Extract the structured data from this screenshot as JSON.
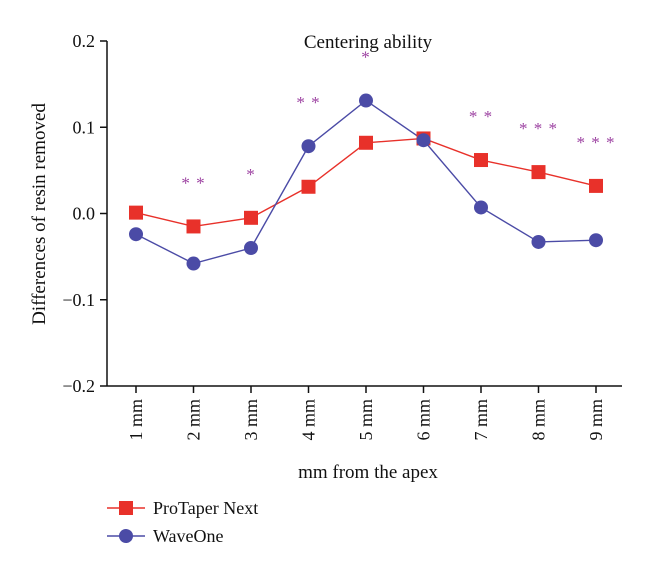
{
  "chart_data": {
    "type": "line",
    "title": "Centering ability",
    "xlabel": "mm from the apex",
    "ylabel": "Differences of resin removed",
    "categories": [
      "1 mm",
      "2 mm",
      "3 mm",
      "4 mm",
      "5 mm",
      "6 mm",
      "7 mm",
      "8 mm",
      "9 mm"
    ],
    "ylim": [
      -0.2,
      0.2
    ],
    "yticks": [
      "0.2",
      "0.1",
      "0.0",
      "−0.1",
      "−0.2"
    ],
    "ytick_values": [
      0.2,
      0.1,
      0.0,
      -0.1,
      -0.2
    ],
    "grid": false,
    "legend_position": "bottom-left",
    "series": [
      {
        "name": "ProTaper Next",
        "color": "#e8312a",
        "marker": "square",
        "values": [
          0.001,
          -0.015,
          -0.005,
          0.031,
          0.082,
          0.087,
          0.062,
          0.048,
          0.032
        ]
      },
      {
        "name": "WaveOne",
        "color": "#4b4ba6",
        "marker": "circle",
        "values": [
          -0.024,
          -0.058,
          -0.04,
          0.078,
          0.131,
          0.085,
          0.007,
          -0.033,
          -0.031
        ]
      }
    ],
    "annotations": [
      {
        "category": "2 mm",
        "text": "* *"
      },
      {
        "category": "3 mm",
        "text": "*"
      },
      {
        "category": "4 mm",
        "text": "* *"
      },
      {
        "category": "5 mm",
        "text": "*"
      },
      {
        "category": "7 mm",
        "text": "* *"
      },
      {
        "category": "8 mm",
        "text": "* * *"
      },
      {
        "category": "9 mm",
        "text": "* * *"
      }
    ],
    "annotation_color": "#9b3fa0"
  }
}
